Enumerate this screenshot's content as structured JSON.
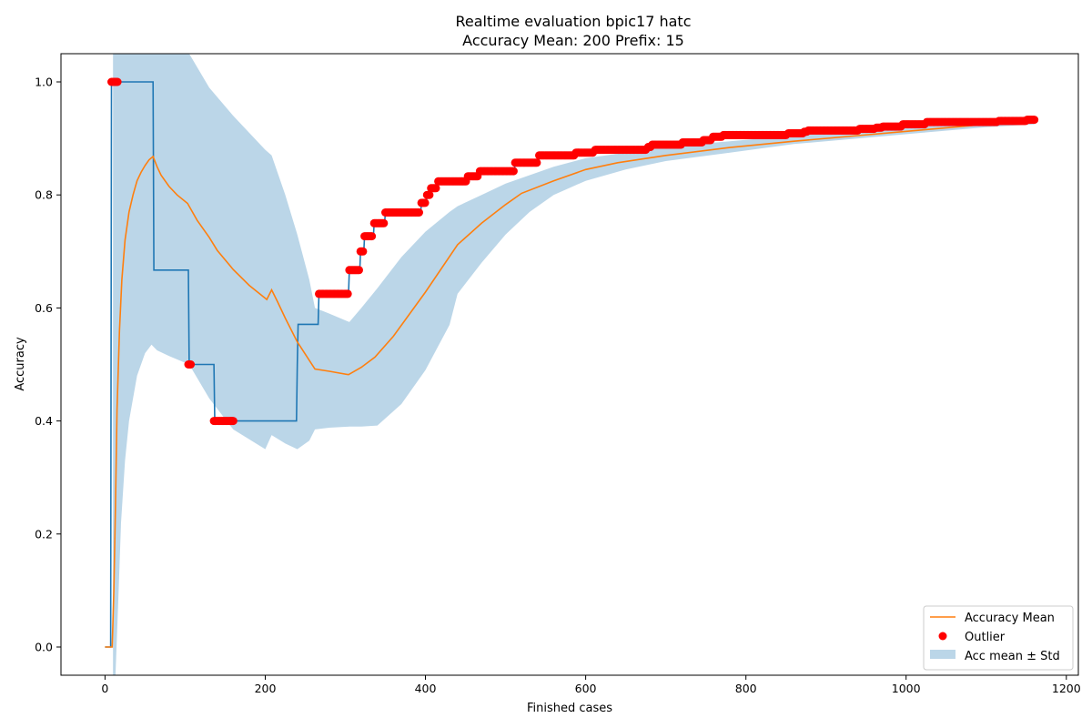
{
  "chart_data": {
    "type": "line",
    "title": "Realtime evaluation bpic17 hatc",
    "subtitle": "Accuracy Mean: 200 Prefix: 15",
    "xlabel": "Finished cases",
    "ylabel": "Accuracy",
    "xlim": [
      -55,
      1215
    ],
    "ylim": [
      -0.05,
      1.05
    ],
    "xticks": [
      0,
      200,
      400,
      600,
      800,
      1000,
      1200
    ],
    "yticks": [
      0.0,
      0.2,
      0.4,
      0.6,
      0.8,
      1.0
    ],
    "xtick_labels": [
      "0",
      "200",
      "400",
      "600",
      "800",
      "1000",
      "1200"
    ],
    "ytick_labels": [
      "0.0",
      "0.2",
      "0.4",
      "0.6",
      "0.8",
      "1.0"
    ],
    "grid": false,
    "legend_position": "bottom-right",
    "legend": [
      "Accuracy Mean",
      "Outlier",
      "Acc mean ± Std"
    ],
    "colors": {
      "accuracy": "#1f77b4",
      "mean": "#ff7f0e",
      "outlier": "#ff0000",
      "band": "#1f77b4"
    },
    "accuracy_step": {
      "x": [
        0,
        7,
        8,
        60,
        61,
        104,
        105,
        136,
        137,
        239,
        240,
        241,
        266,
        267,
        304,
        305,
        318,
        319,
        323,
        324,
        335,
        336,
        349,
        350,
        394,
        395,
        401,
        402,
        406,
        407,
        415,
        416,
        452,
        453,
        467,
        468,
        511,
        512,
        541,
        542,
        587,
        588,
        611,
        612,
        677,
        678,
        682,
        683,
        720,
        721,
        746,
        747,
        758,
        759,
        771,
        772,
        852,
        853,
        872,
        873,
        877,
        878,
        941,
        942,
        962,
        963,
        970,
        971,
        995,
        996,
        1025,
        1026,
        1115,
        1116,
        1150,
        1151,
        1160
      ],
      "y": [
        0.0,
        0.0,
        1.0,
        1.0,
        0.667,
        0.667,
        0.5,
        0.5,
        0.4,
        0.4,
        0.5,
        0.571,
        0.571,
        0.625,
        0.625,
        0.667,
        0.667,
        0.7,
        0.7,
        0.727,
        0.727,
        0.75,
        0.75,
        0.769,
        0.769,
        0.786,
        0.786,
        0.8,
        0.8,
        0.812,
        0.812,
        0.824,
        0.824,
        0.833,
        0.833,
        0.842,
        0.842,
        0.857,
        0.857,
        0.87,
        0.87,
        0.875,
        0.875,
        0.88,
        0.88,
        0.885,
        0.885,
        0.889,
        0.889,
        0.893,
        0.893,
        0.897,
        0.897,
        0.903,
        0.903,
        0.906,
        0.906,
        0.909,
        0.909,
        0.912,
        0.912,
        0.914,
        0.914,
        0.917,
        0.917,
        0.919,
        0.919,
        0.921,
        0.921,
        0.925,
        0.925,
        0.929,
        0.929,
        0.931,
        0.931,
        0.933,
        0.933
      ]
    },
    "accuracy_mean": {
      "x": [
        0,
        7,
        9,
        11,
        13,
        15,
        18,
        21,
        25,
        30,
        35,
        40,
        45,
        50,
        55,
        60,
        65,
        70,
        80,
        90,
        103,
        115,
        130,
        140,
        160,
        180,
        202,
        208,
        215,
        225,
        240,
        262,
        280,
        304,
        320,
        337,
        360,
        400,
        440,
        470,
        500,
        520,
        560,
        600,
        640,
        700,
        780,
        860,
        940,
        1020,
        1100,
        1160
      ],
      "y": [
        0.0,
        0.0,
        0.0,
        0.1,
        0.25,
        0.42,
        0.56,
        0.65,
        0.72,
        0.77,
        0.8,
        0.825,
        0.84,
        0.852,
        0.862,
        0.868,
        0.85,
        0.835,
        0.815,
        0.8,
        0.785,
        0.755,
        0.725,
        0.702,
        0.668,
        0.64,
        0.615,
        0.632,
        0.612,
        0.582,
        0.54,
        0.492,
        0.488,
        0.482,
        0.495,
        0.513,
        0.55,
        0.628,
        0.712,
        0.75,
        0.783,
        0.803,
        0.825,
        0.845,
        0.857,
        0.87,
        0.884,
        0.895,
        0.905,
        0.915,
        0.925,
        0.933
      ]
    },
    "std_band": {
      "x": [
        10,
        13,
        17,
        20,
        25,
        30,
        40,
        50,
        58,
        65,
        80,
        105,
        130,
        160,
        200,
        208,
        225,
        240,
        255,
        262,
        280,
        305,
        320,
        340,
        370,
        400,
        430,
        440,
        470,
        500,
        530,
        560,
        600,
        650,
        700,
        780,
        860,
        940,
        1020,
        1100,
        1160
      ],
      "upper": [
        1.05,
        1.05,
        1.05,
        1.05,
        1.05,
        1.05,
        1.05,
        1.05,
        1.05,
        1.05,
        1.05,
        1.05,
        0.99,
        0.94,
        0.88,
        0.87,
        0.8,
        0.73,
        0.65,
        0.6,
        0.59,
        0.575,
        0.6,
        0.635,
        0.69,
        0.735,
        0.77,
        0.78,
        0.8,
        0.82,
        0.835,
        0.85,
        0.865,
        0.875,
        0.885,
        0.895,
        0.905,
        0.915,
        0.925,
        0.93,
        0.935
      ],
      "lower": [
        -0.05,
        -0.05,
        0.1,
        0.22,
        0.33,
        0.4,
        0.48,
        0.52,
        0.535,
        0.525,
        0.515,
        0.5,
        0.44,
        0.385,
        0.35,
        0.375,
        0.36,
        0.35,
        0.365,
        0.385,
        0.388,
        0.39,
        0.39,
        0.392,
        0.43,
        0.49,
        0.57,
        0.625,
        0.68,
        0.73,
        0.77,
        0.8,
        0.825,
        0.845,
        0.86,
        0.875,
        0.89,
        0.9,
        0.91,
        0.92,
        0.925
      ]
    },
    "outliers": [
      {
        "x_range": [
          8,
          16
        ],
        "y": 1.0
      },
      {
        "x_range": [
          104,
          107
        ],
        "y": 0.5
      },
      {
        "x_range": [
          136,
          160
        ],
        "y": 0.4
      },
      {
        "x_range": [
          267,
          303
        ],
        "y": 0.625
      },
      {
        "x_range": [
          305,
          317
        ],
        "y": 0.667
      },
      {
        "x_range": [
          319,
          322
        ],
        "y": 0.7
      },
      {
        "x_range": [
          324,
          334
        ],
        "y": 0.727
      },
      {
        "x_range": [
          336,
          348
        ],
        "y": 0.75
      },
      {
        "x_range": [
          350,
          393
        ],
        "y": 0.769
      },
      {
        "x_range": [
          395,
          400
        ],
        "y": 0.786
      },
      {
        "x_range": [
          402,
          405
        ],
        "y": 0.8
      },
      {
        "x_range": [
          407,
          414
        ],
        "y": 0.812
      },
      {
        "x_range": [
          416,
          451
        ],
        "y": 0.824
      },
      {
        "x_range": [
          453,
          466
        ],
        "y": 0.833
      },
      {
        "x_range": [
          468,
          510
        ],
        "y": 0.842
      },
      {
        "x_range": [
          512,
          540
        ],
        "y": 0.857
      },
      {
        "x_range": [
          542,
          586
        ],
        "y": 0.87
      },
      {
        "x_range": [
          588,
          610
        ],
        "y": 0.875
      },
      {
        "x_range": [
          612,
          676
        ],
        "y": 0.88
      },
      {
        "x_range": [
          678,
          681
        ],
        "y": 0.885
      },
      {
        "x_range": [
          683,
          719
        ],
        "y": 0.889
      },
      {
        "x_range": [
          721,
          745
        ],
        "y": 0.893
      },
      {
        "x_range": [
          747,
          757
        ],
        "y": 0.897
      },
      {
        "x_range": [
          759,
          770
        ],
        "y": 0.903
      },
      {
        "x_range": [
          772,
          851
        ],
        "y": 0.906
      },
      {
        "x_range": [
          853,
          871
        ],
        "y": 0.909
      },
      {
        "x_range": [
          873,
          876
        ],
        "y": 0.912
      },
      {
        "x_range": [
          878,
          940
        ],
        "y": 0.914
      },
      {
        "x_range": [
          942,
          961
        ],
        "y": 0.917
      },
      {
        "x_range": [
          963,
          969
        ],
        "y": 0.919
      },
      {
        "x_range": [
          971,
          994
        ],
        "y": 0.921
      },
      {
        "x_range": [
          996,
          1024
        ],
        "y": 0.925
      },
      {
        "x_range": [
          1026,
          1114
        ],
        "y": 0.929
      },
      {
        "x_range": [
          1116,
          1149
        ],
        "y": 0.931
      },
      {
        "x_range": [
          1151,
          1160
        ],
        "y": 0.933
      }
    ]
  }
}
